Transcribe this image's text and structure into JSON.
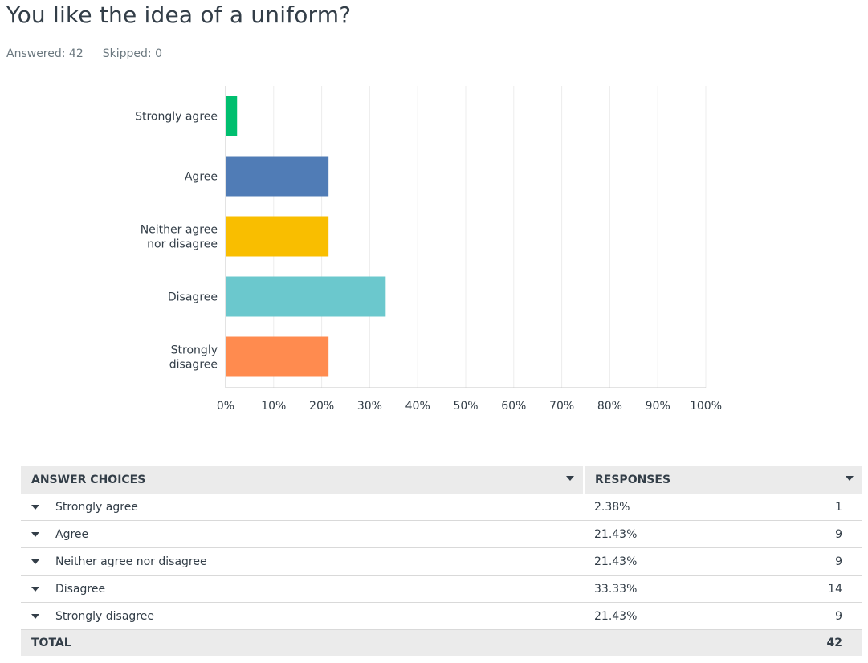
{
  "question": {
    "title": "You like the idea of a uniform?",
    "answered": "Answered: 42",
    "skipped": "Skipped: 0"
  },
  "chart_data": {
    "type": "bar",
    "orientation": "horizontal",
    "categories": [
      "Strongly agree",
      "Agree",
      "Neither agree nor disagree",
      "Disagree",
      "Strongly disagree"
    ],
    "category_label_lines": [
      [
        "Strongly agree"
      ],
      [
        "Agree"
      ],
      [
        "Neither agree",
        "nor disagree"
      ],
      [
        "Disagree"
      ],
      [
        "Strongly",
        "disagree"
      ]
    ],
    "values": [
      2.38,
      21.43,
      21.43,
      33.33,
      21.43
    ],
    "colors": [
      "#00bf6f",
      "#507cb6",
      "#f9be00",
      "#6bc8cd",
      "#ff8b4f"
    ],
    "xlim": [
      0,
      100
    ],
    "xticks": [
      "0%",
      "10%",
      "20%",
      "30%",
      "40%",
      "50%",
      "60%",
      "70%",
      "80%",
      "90%",
      "100%"
    ],
    "grid": true
  },
  "table": {
    "headers": {
      "answer": "ANSWER CHOICES",
      "responses": "RESPONSES"
    },
    "rows": [
      {
        "label": "Strongly agree",
        "percent": "2.38%",
        "count": "1"
      },
      {
        "label": "Agree",
        "percent": "21.43%",
        "count": "9"
      },
      {
        "label": "Neither agree nor disagree",
        "percent": "21.43%",
        "count": "9"
      },
      {
        "label": "Disagree",
        "percent": "33.33%",
        "count": "14"
      },
      {
        "label": "Strongly disagree",
        "percent": "21.43%",
        "count": "9"
      }
    ],
    "total": {
      "label": "TOTAL",
      "count": "42"
    }
  },
  "icons": {
    "sort": "chevron-down-icon",
    "row_expand": "chevron-down-icon"
  }
}
